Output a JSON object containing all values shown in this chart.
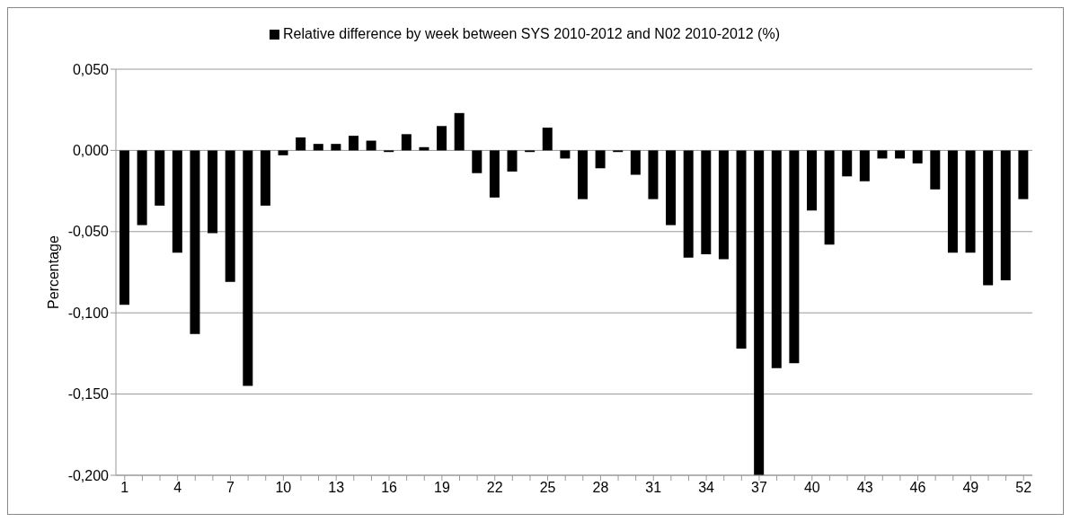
{
  "chart_data": {
    "type": "bar",
    "ylabel": "Percentage",
    "legend": "top",
    "categories": [
      "1",
      null,
      null,
      "4",
      null,
      null,
      "7",
      null,
      null,
      "10",
      null,
      null,
      "13",
      null,
      null,
      "16",
      null,
      null,
      "19",
      null,
      null,
      "22",
      null,
      null,
      "25",
      null,
      null,
      "28",
      null,
      null,
      "31",
      null,
      null,
      "34",
      null,
      null,
      "37",
      null,
      null,
      "40",
      null,
      null,
      "43",
      null,
      null,
      "46",
      null,
      null,
      "49",
      null,
      null,
      "52"
    ],
    "series": [
      {
        "name": "Relative difference by week between SYS 2010-2012 and N02 2010-2012 (%)",
        "color": "#000000",
        "values": [
          -0.095,
          -0.046,
          -0.034,
          -0.063,
          -0.113,
          -0.051,
          -0.081,
          -0.145,
          -0.034,
          -0.003,
          0.008,
          0.004,
          0.004,
          0.009,
          0.006,
          -0.001,
          0.01,
          0.002,
          0.015,
          0.023,
          -0.014,
          -0.029,
          -0.013,
          -0.001,
          0.014,
          -0.005,
          -0.03,
          -0.011,
          -0.001,
          -0.015,
          -0.03,
          -0.046,
          -0.066,
          -0.064,
          -0.067,
          -0.122,
          -0.2,
          -0.134,
          -0.131,
          -0.037,
          -0.058,
          -0.016,
          -0.019,
          -0.005,
          -0.005,
          -0.008,
          -0.024,
          -0.063,
          -0.063,
          -0.083,
          -0.08,
          -0.03
        ]
      }
    ],
    "ylim": [
      -0.2,
      0.05
    ],
    "yticks": [
      {
        "value": -0.2,
        "label": "-0,200"
      },
      {
        "value": -0.15,
        "label": "-0,150"
      },
      {
        "value": -0.1,
        "label": "-0,100"
      },
      {
        "value": -0.05,
        "label": "-0,050"
      },
      {
        "value": 0,
        "label": "0,000"
      },
      {
        "value": 0.05,
        "label": "0,050"
      }
    ],
    "grid": "y"
  }
}
